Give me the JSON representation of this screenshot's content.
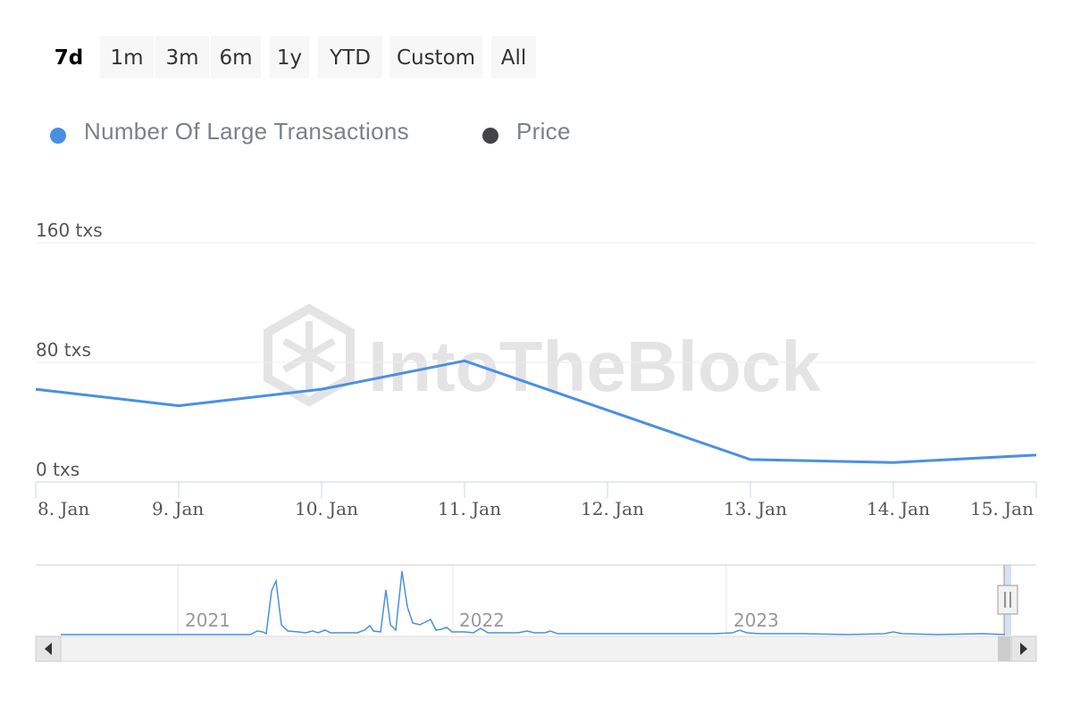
{
  "range_selector": {
    "buttons": [
      {
        "label": "7d",
        "active": true
      },
      {
        "label": "1m",
        "active": false
      },
      {
        "label": "3m",
        "active": false
      },
      {
        "label": "6m",
        "active": false
      },
      {
        "label": "1y",
        "active": false
      },
      {
        "label": "YTD",
        "active": false
      },
      {
        "label": "Custom",
        "active": false
      },
      {
        "label": "All",
        "active": false
      }
    ]
  },
  "legend": {
    "items": [
      {
        "label": "Number Of Large Transactions",
        "color": "#4a90e2"
      },
      {
        "label": "Price",
        "color": "#434348"
      }
    ]
  },
  "watermark": "IntoTheBlock",
  "chart_data": {
    "type": "line",
    "title": "",
    "xlabel": "",
    "ylabel": "",
    "x": [
      "8. Jan",
      "9. Jan",
      "10. Jan",
      "11. Jan",
      "12. Jan",
      "13. Jan",
      "14. Jan",
      "15. Jan"
    ],
    "series": [
      {
        "name": "Number Of Large Transactions",
        "color": "#4a90e2",
        "values": [
          62,
          51,
          62,
          81,
          48,
          15,
          13,
          18
        ]
      }
    ],
    "ylim": [
      0,
      160
    ],
    "y_ticks": [
      "0 txs",
      "80 txs",
      "160 txs"
    ],
    "y_tick_values": [
      0,
      80,
      160
    ],
    "grid": true,
    "legend_position": "top-left"
  },
  "navigator": {
    "year_labels": [
      "2021",
      "2022",
      "2023"
    ],
    "overview_color": "#4a90e2"
  }
}
